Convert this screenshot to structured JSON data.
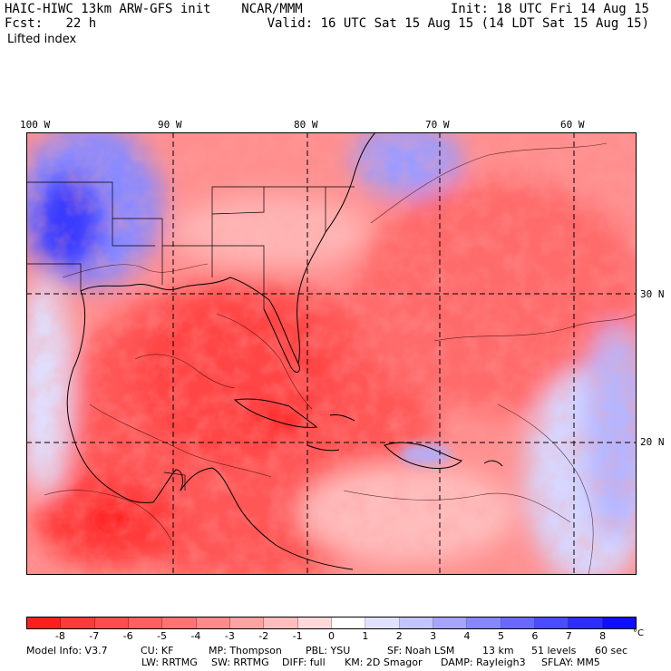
{
  "header": {
    "title": "HAIC-HIWC 13km ARW-GFS init    NCAR/MMM",
    "init": "Init: 18 UTC Fri 14 Aug 15",
    "fcst_label": "Fcst:",
    "fcst_value": "22 h",
    "valid": "Valid: 16 UTC Sat 15 Aug 15 (14 LDT Sat 15 Aug 15)",
    "field": "Lifted index"
  },
  "map": {
    "lon_labels": [
      "100 W",
      "90 W",
      "80 W",
      "70 W",
      "60 W"
    ],
    "lat_labels": [
      "30 N",
      "20 N"
    ]
  },
  "colorbar": {
    "ticks": [
      "-8",
      "-7",
      "-6",
      "-5",
      "-4",
      "-3",
      "-2",
      "-1",
      "0",
      "1",
      "2",
      "3",
      "4",
      "5",
      "6",
      "7",
      "8"
    ],
    "unit": "°C",
    "colors": [
      "#ff1e1e",
      "#ff3a3a",
      "#ff4d4d",
      "#ff5f5f",
      "#ff7373",
      "#ff8a8a",
      "#ffa2a2",
      "#ffbdbd",
      "#ffd9d9",
      "#ffffff",
      "#e1e1ff",
      "#c3c3ff",
      "#a5a5ff",
      "#8787ff",
      "#6969ff",
      "#4b4bff",
      "#2d2dff",
      "#0f0fff"
    ]
  },
  "model_info": {
    "line1": [
      "Model Info: V3.7",
      "CU: KF",
      "MP: Thompson",
      "PBL: YSU",
      "SF: Noah LSM",
      "13 km",
      "51 levels",
      "60 sec"
    ],
    "line2": [
      "LW: RRTMG",
      "SW: RRTMG",
      "DIFF: full",
      "KM: 2D Smagor",
      "DAMP: Rayleigh3",
      "SFLAY: MM5"
    ]
  }
}
